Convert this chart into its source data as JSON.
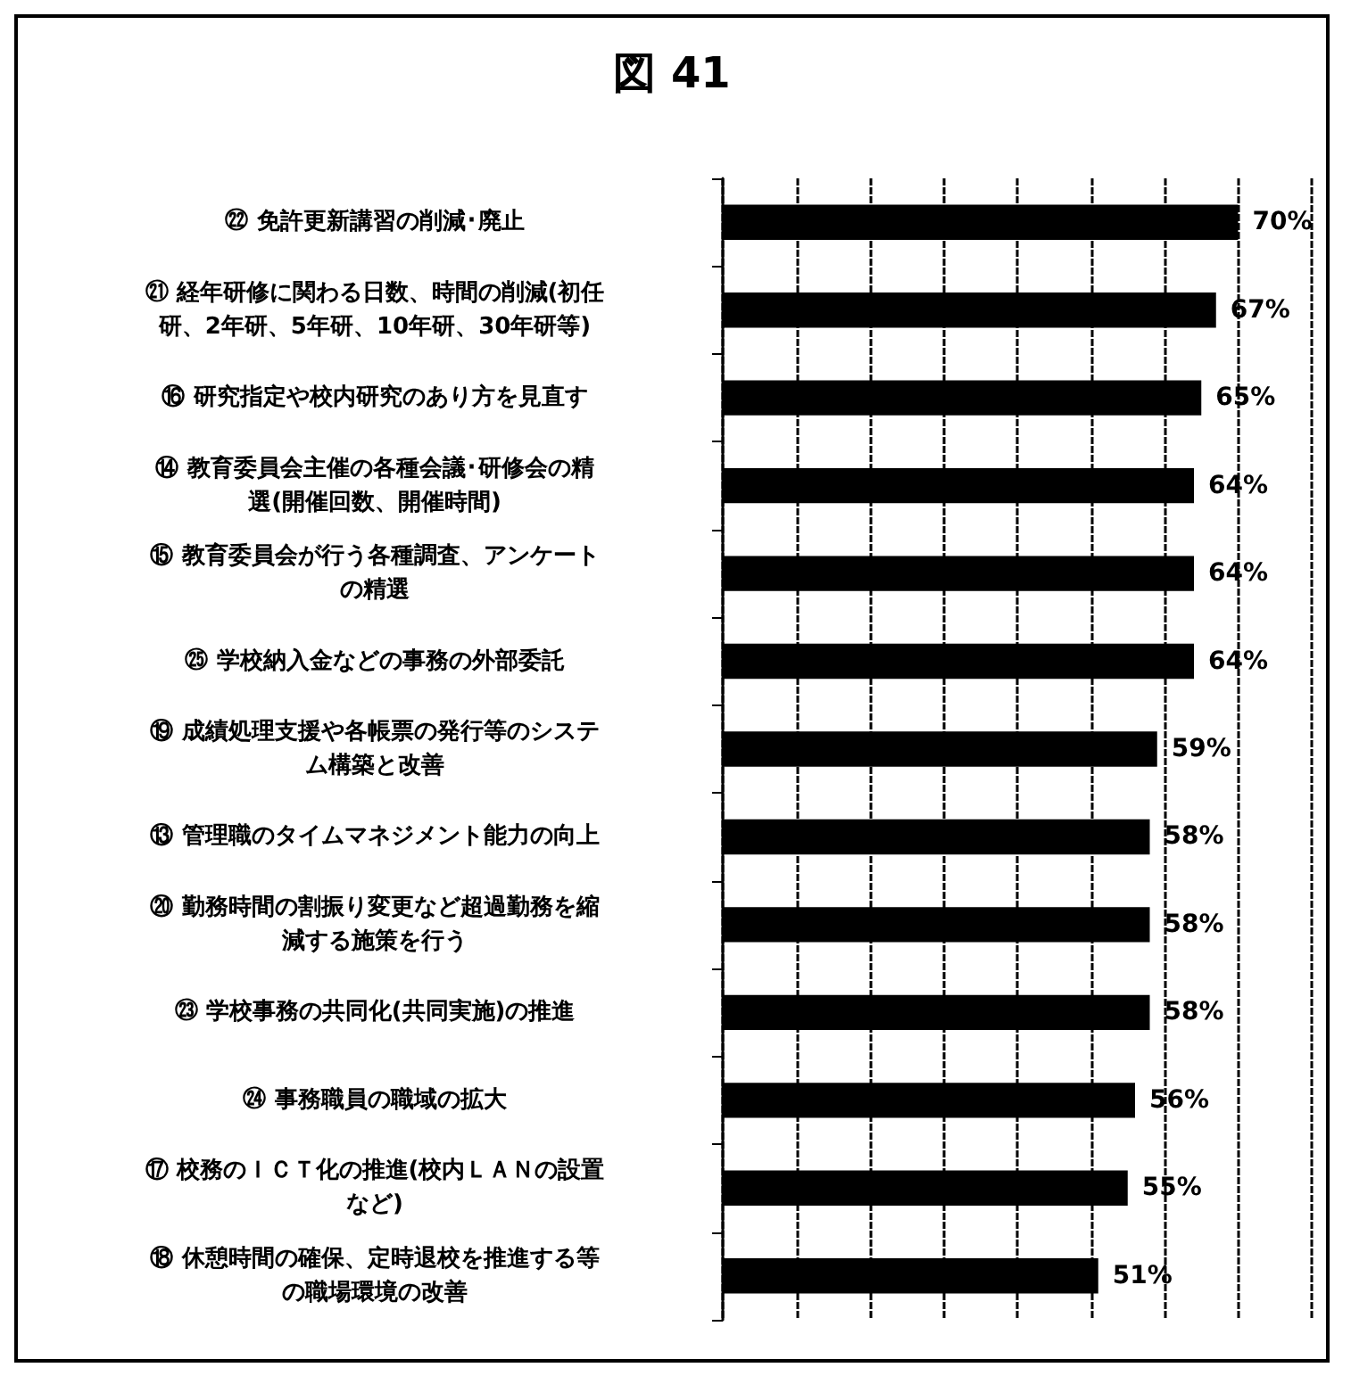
{
  "chart_data": {
    "type": "bar",
    "orientation": "horizontal",
    "title": "図 41",
    "categories": [
      "㉒ 免許更新講習の削減･廃止",
      "㉑ 経年研修に関わる日数、時間の削減(初任研、2年研、5年研、10年研、30年研等)",
      "⑯ 研究指定や校内研究のあり方を見直す",
      "⑭ 教育委員会主催の各種会議･研修会の精選(開催回数、開催時間)",
      "⑮ 教育委員会が行う各種調査、アンケートの精選",
      "㉕ 学校納入金などの事務の外部委託",
      "⑲ 成績処理支援や各帳票の発行等のシステム構築と改善",
      "⑬ 管理職のタイムマネジメント能力の向上",
      "⑳ 勤務時間の割振り変更など超過勤務を縮減する施策を行う",
      "㉓ 学校事務の共同化(共同実施)の推進",
      "㉔ 事務職員の職域の拡大",
      "⑰ 校務のＩＣＴ化の推進(校内ＬＡＮの設置など)",
      "⑱ 休憩時間の確保、定時退校を推進する等の職場環境の改善"
    ],
    "values": [
      70,
      67,
      65,
      64,
      64,
      64,
      59,
      58,
      58,
      58,
      56,
      55,
      51
    ],
    "value_labels": [
      "70%",
      "67%",
      "65%",
      "64%",
      "64%",
      "64%",
      "59%",
      "58%",
      "58%",
      "58%",
      "56%",
      "55%",
      "51%"
    ],
    "color": "#000000",
    "xlim": [
      0,
      80
    ],
    "xticks": [
      {
        "value": 0,
        "label": null
      },
      {
        "value": 10,
        "label": null
      },
      {
        "value": 20,
        "label": null
      },
      {
        "value": 30,
        "label": null
      },
      {
        "value": 40,
        "label": null
      },
      {
        "value": 50,
        "label": null
      },
      {
        "value": 60,
        "label": null
      },
      {
        "value": 70,
        "label": null
      },
      {
        "value": 80,
        "label": null
      }
    ],
    "grid": "x",
    "tick_labels": "y"
  }
}
